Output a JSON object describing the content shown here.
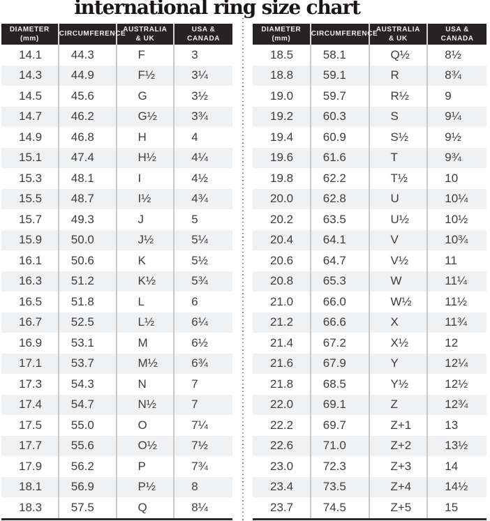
{
  "title": "international ring size chart",
  "colors": {
    "header_bg": "#272324",
    "header_text": "#f2f0f0",
    "row_alt": "#f0f1f2",
    "cell_text": "#3e3d3e",
    "title_color": "#1a1617",
    "cell_border": "#c9c9c9",
    "bottom_border": "#2b2728",
    "divider_dot": "#878787"
  },
  "chart_data": {
    "type": "table",
    "title": "international ring size chart",
    "columns": [
      "DIAMETER (mm)",
      "CIRCUMFERENCE",
      "AUSTRALIA & UK",
      "USA & CANADA"
    ],
    "column_lines": [
      [
        "DIAMETER",
        "(mm)"
      ],
      [
        "CIRCUMFERENCE"
      ],
      [
        "AUSTRALIA",
        "& UK"
      ],
      [
        "USA &",
        "CANADA"
      ]
    ],
    "layout": "two side-by-side tables separated by a vertical dotted line",
    "tables": [
      {
        "name": "left",
        "rows": [
          [
            "14.1",
            "44.3",
            "F",
            "3"
          ],
          [
            "14.3",
            "44.9",
            "F½",
            "3¼"
          ],
          [
            "14.5",
            "45.6",
            "G",
            "3½"
          ],
          [
            "14.7",
            "46.2",
            "G½",
            "3¾"
          ],
          [
            "14.9",
            "46.8",
            "H",
            "4"
          ],
          [
            "15.1",
            "47.4",
            "H½",
            "4¼"
          ],
          [
            "15.3",
            "48.1",
            "I",
            "4½"
          ],
          [
            "15.5",
            "48.7",
            "I½",
            "4¾"
          ],
          [
            "15.7",
            "49.3",
            "J",
            "5"
          ],
          [
            "15.9",
            "50.0",
            "J½",
            "5¼"
          ],
          [
            "16.1",
            "50.6",
            "K",
            "5½"
          ],
          [
            "16.3",
            "51.2",
            "K½",
            "5¾"
          ],
          [
            "16.5",
            "51.8",
            "L",
            "6"
          ],
          [
            "16.7",
            "52.5",
            "L½",
            "6¼"
          ],
          [
            "16.9",
            "53.1",
            "M",
            "6½"
          ],
          [
            "17.1",
            "53.7",
            "M½",
            "6¾"
          ],
          [
            "17.3",
            "54.3",
            "N",
            "7"
          ],
          [
            "17.4",
            "54.7",
            "N½",
            "7"
          ],
          [
            "17.5",
            "55.0",
            "O",
            "7¼"
          ],
          [
            "17.7",
            "55.6",
            "O½",
            "7½"
          ],
          [
            "17.9",
            "56.2",
            "P",
            "7¾"
          ],
          [
            "18.1",
            "56.9",
            "P½",
            "8"
          ],
          [
            "18.3",
            "57.5",
            "Q",
            "8¼"
          ]
        ]
      },
      {
        "name": "right",
        "rows": [
          [
            "18.5",
            "58.1",
            "Q½",
            "8½"
          ],
          [
            "18.8",
            "59.1",
            "R",
            "8¾"
          ],
          [
            "19.0",
            "59.7",
            "R½",
            "9"
          ],
          [
            "19.2",
            "60.3",
            "S",
            "9¼"
          ],
          [
            "19.4",
            "60.9",
            "S½",
            "9½"
          ],
          [
            "19.6",
            "61.6",
            "T",
            "9¾"
          ],
          [
            "19.8",
            "62.2",
            "T½",
            "10"
          ],
          [
            "20.0",
            "62.8",
            "U",
            "10¼"
          ],
          [
            "20.2",
            "63.5",
            "U½",
            "10½"
          ],
          [
            "20.4",
            "64.1",
            "V",
            "10¾"
          ],
          [
            "20.6",
            "64.7",
            "V½",
            "11"
          ],
          [
            "20.8",
            "65.3",
            "W",
            "11¼"
          ],
          [
            "21.0",
            "66.0",
            "W½",
            "11½"
          ],
          [
            "21.2",
            "66.6",
            "X",
            "11¾"
          ],
          [
            "21.4",
            "67.2",
            "X½",
            "12"
          ],
          [
            "21.6",
            "67.9",
            "Y",
            "12¼"
          ],
          [
            "21.8",
            "68.5",
            "Y½",
            "12½"
          ],
          [
            "22.0",
            "69.1",
            "Z",
            "12¾"
          ],
          [
            "22.2",
            "69.7",
            "Z+1",
            "13"
          ],
          [
            "22.6",
            "71.0",
            "Z+2",
            "13½"
          ],
          [
            "23.0",
            "72.3",
            "Z+3",
            "14"
          ],
          [
            "23.4",
            "73.5",
            "Z+4",
            "14½"
          ],
          [
            "23.7",
            "74.5",
            "Z+5",
            "15"
          ]
        ]
      }
    ]
  }
}
